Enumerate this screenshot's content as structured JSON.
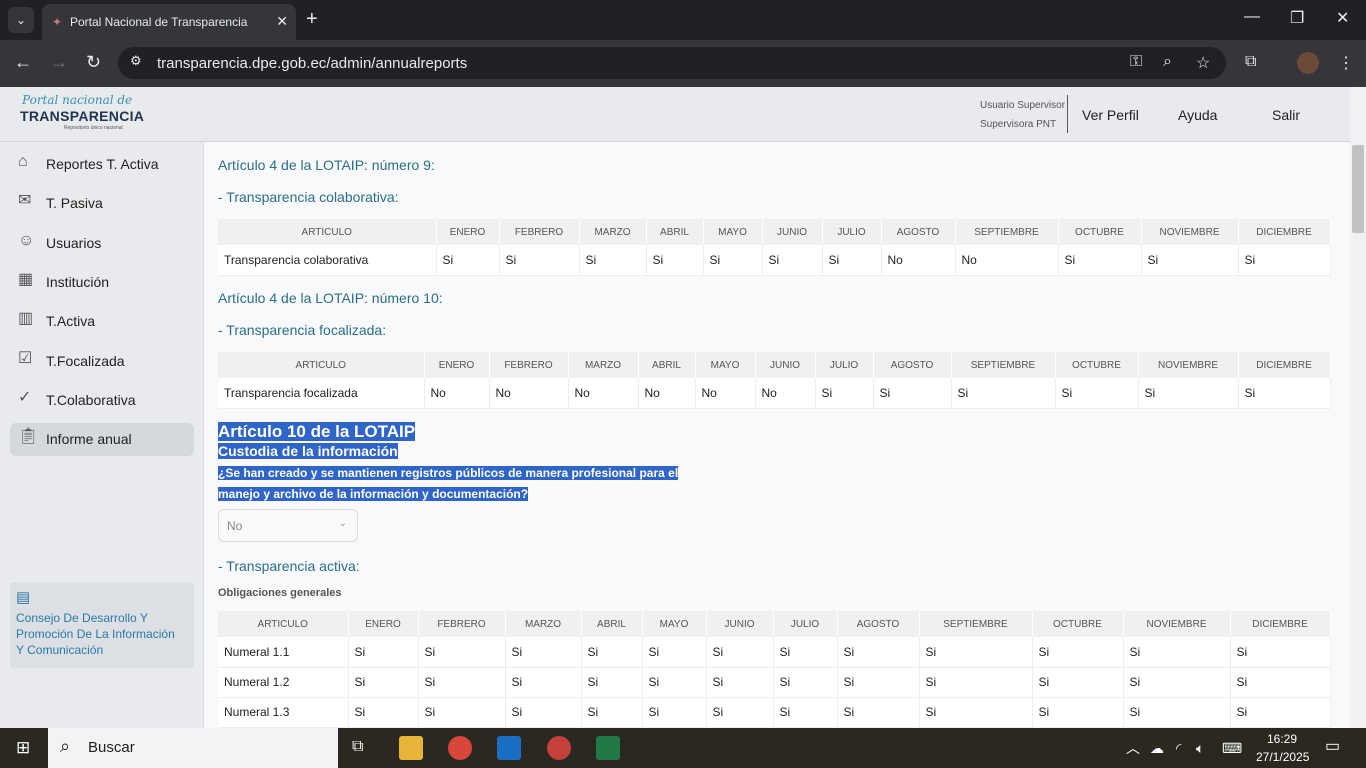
{
  "browser": {
    "tab_title": "Portal Nacional de Transparencia",
    "url": "transparencia.dpe.gob.ec/admin/annualreports"
  },
  "header": {
    "logo_script": "Portal nacional de",
    "logo_main": "TRANSPARENCIA",
    "logo_sub": "Repositorio único nacional",
    "user_role": "Usuario Supervisor",
    "user_name": "Supervisora PNT",
    "ver_perfil": "Ver Perfil",
    "ayuda": "Ayuda",
    "salir": "Salir"
  },
  "sidebar": {
    "items": [
      {
        "label": "Reportes T. Activa",
        "icon": "home-icon"
      },
      {
        "label": "T. Pasiva",
        "icon": "mail-check-icon"
      },
      {
        "label": "Usuarios",
        "icon": "user-icon"
      },
      {
        "label": "Institución",
        "icon": "building-icon"
      },
      {
        "label": "T.Activa",
        "icon": "bar-chart-icon"
      },
      {
        "label": "T.Focalizada",
        "icon": "checkbox-icon"
      },
      {
        "label": "T.Colaborativa",
        "icon": "check-icon"
      },
      {
        "label": "Informe anual",
        "icon": "clipboard-icon",
        "active": true
      }
    ],
    "footer": "Consejo De Desarrollo Y Promoción De La Información Y Comunicación"
  },
  "months": [
    "ENERO",
    "FEBRERO",
    "MARZO",
    "ABRIL",
    "MAYO",
    "JUNIO",
    "JULIO",
    "AGOSTO",
    "SEPTIEMBRE",
    "OCTUBRE",
    "NOVIEMBRE",
    "DICIEMBRE"
  ],
  "article_header": "ARTICULO",
  "sec1": {
    "title": "Artículo 4 de la LOTAIP: número 9:",
    "subtitle": "- Transparencia colaborativa:",
    "rows": [
      {
        "label": "Transparencia colaborativa",
        "values": [
          "Si",
          "Si",
          "Si",
          "Si",
          "Si",
          "Si",
          "Si",
          "No",
          "No",
          "Si",
          "Si",
          "Si"
        ]
      }
    ]
  },
  "sec2": {
    "title": "Artículo 4 de la LOTAIP: número 10:",
    "subtitle": "- Transparencia focalizada:",
    "rows": [
      {
        "label": "Transparencia focalizada",
        "values": [
          "No",
          "No",
          "No",
          "No",
          "No",
          "No",
          "Si",
          "Si",
          "Si",
          "Si",
          "Si",
          "Si"
        ]
      }
    ]
  },
  "art10": {
    "title": "Artículo 10 de la LOTAIP",
    "subtitle": "Custodia de la información",
    "question_line1": "¿Se han creado y se mantienen registros públicos de manera profesional para el",
    "question_line2": "manejo y archivo de la información y documentación?",
    "answer": "No"
  },
  "sec3": {
    "subtitle": "- Transparencia activa:",
    "group": "Obligaciones generales",
    "rows": [
      {
        "label": "Numeral 1.1",
        "values": [
          "Si",
          "Si",
          "Si",
          "Si",
          "Si",
          "Si",
          "Si",
          "Si",
          "Si",
          "Si",
          "Si",
          "Si"
        ]
      },
      {
        "label": "Numeral 1.2",
        "values": [
          "Si",
          "Si",
          "Si",
          "Si",
          "Si",
          "Si",
          "Si",
          "Si",
          "Si",
          "Si",
          "Si",
          "Si"
        ]
      },
      {
        "label": "Numeral 1.3",
        "values": [
          "Si",
          "Si",
          "Si",
          "Si",
          "Si",
          "Si",
          "Si",
          "Si",
          "Si",
          "Si",
          "Si",
          "Si"
        ]
      }
    ]
  },
  "taskbar": {
    "search": "Buscar",
    "time": "16:29",
    "date": "27/1/2025"
  }
}
